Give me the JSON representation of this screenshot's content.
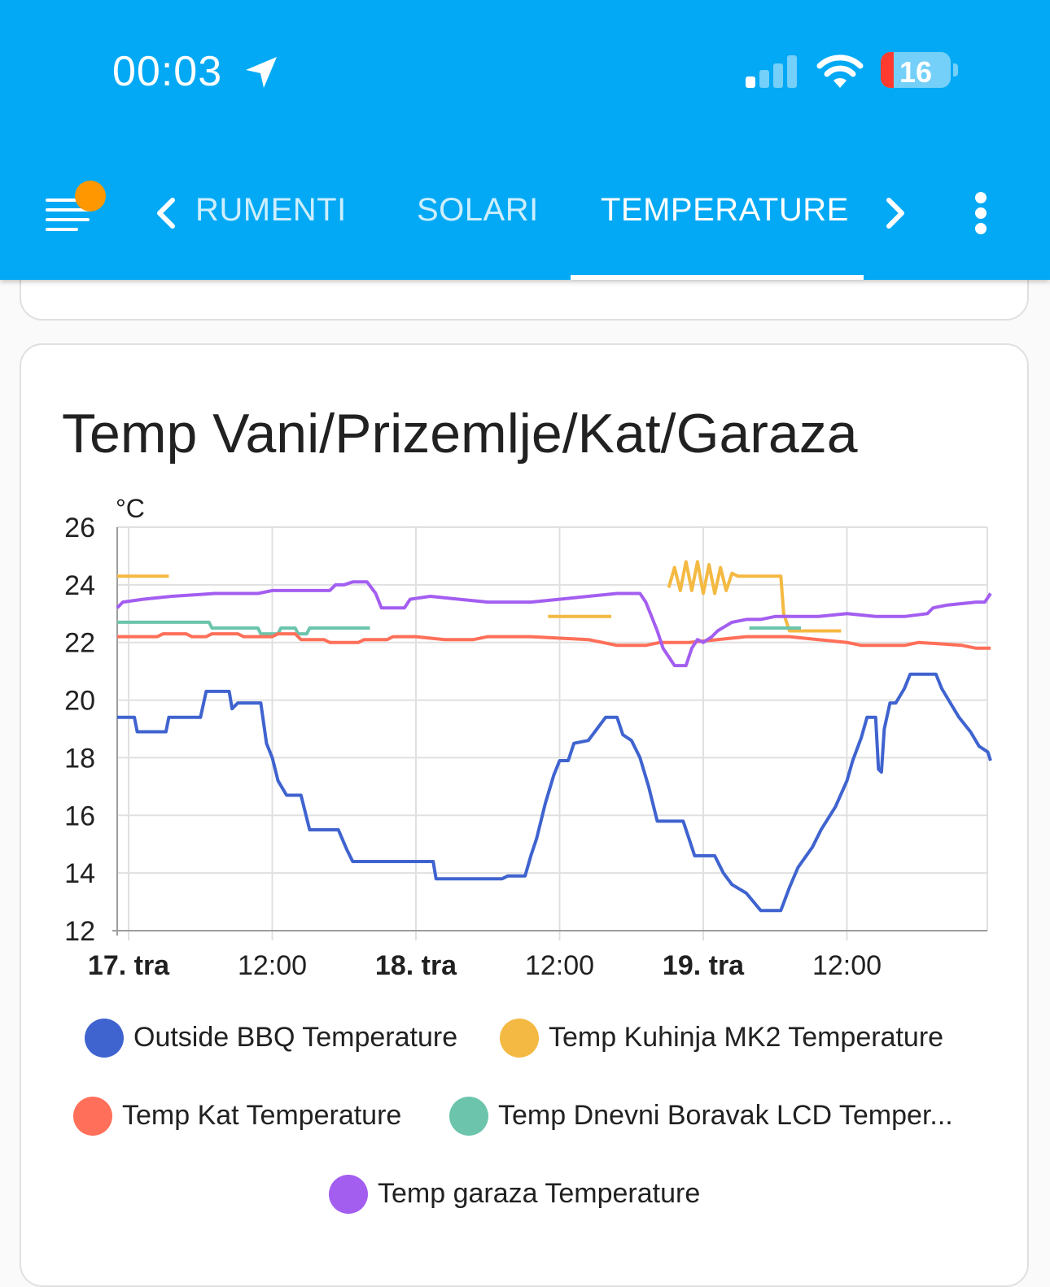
{
  "status_bar": {
    "time": "00:03",
    "battery": "16",
    "location_icon": "location-arrow-icon",
    "signal_icon": "cellular-signal-icon",
    "wifi_icon": "wifi-icon"
  },
  "app_bar": {
    "menu_icon": "menu-icon",
    "tabs": [
      {
        "label": "RUMENTI",
        "active": false
      },
      {
        "label": "SOLARI",
        "active": false
      },
      {
        "label": "TEMPERATURE",
        "active": true
      }
    ],
    "prev_icon": "chevron-left-icon",
    "next_icon": "chevron-right-icon",
    "overflow_icon": "more-vert-icon",
    "accent": "#03a9f4",
    "badge_color": "#ff9800"
  },
  "card": {
    "title": "Temp Vani/Prizemlje/Kat/Garaza"
  },
  "chart_data": {
    "type": "line",
    "title": "Temp Vani/Prizemlje/Kat/Garaza",
    "ylabel": "°C",
    "xlabel": "",
    "ylim": [
      12,
      26
    ],
    "yticks": [
      "26",
      "24",
      "22",
      "20",
      "18",
      "16",
      "14",
      "12"
    ],
    "xlim": [
      -0.08,
      3.0
    ],
    "xticks": [
      {
        "x": 0.0,
        "label": "17. tra",
        "bold": true
      },
      {
        "x": 0.5,
        "label": "12:00",
        "bold": false
      },
      {
        "x": 1.0,
        "label": "18. tra",
        "bold": true
      },
      {
        "x": 1.5,
        "label": "12:00",
        "bold": false
      },
      {
        "x": 2.0,
        "label": "19. tra",
        "bold": true
      },
      {
        "x": 2.5,
        "label": "12:00",
        "bold": false
      }
    ],
    "grid": true,
    "legend_position": "bottom",
    "series": [
      {
        "name": "Outside BBQ Temperature",
        "color": "#3f63cf",
        "points": [
          [
            -0.04,
            19.4
          ],
          [
            0.02,
            19.4
          ],
          [
            0.03,
            18.9
          ],
          [
            0.13,
            18.9
          ],
          [
            0.14,
            19.4
          ],
          [
            0.25,
            19.4
          ],
          [
            0.27,
            20.3
          ],
          [
            0.35,
            20.3
          ],
          [
            0.36,
            19.7
          ],
          [
            0.38,
            19.9
          ],
          [
            0.46,
            19.9
          ],
          [
            0.48,
            18.5
          ],
          [
            0.5,
            18.0
          ],
          [
            0.52,
            17.2
          ],
          [
            0.55,
            16.7
          ],
          [
            0.6,
            16.7
          ],
          [
            0.63,
            15.5
          ],
          [
            0.73,
            15.5
          ],
          [
            0.76,
            14.8
          ],
          [
            0.78,
            14.4
          ],
          [
            1.06,
            14.4
          ],
          [
            1.07,
            13.8
          ],
          [
            1.3,
            13.8
          ],
          [
            1.32,
            13.9
          ],
          [
            1.38,
            13.9
          ],
          [
            1.4,
            14.6
          ],
          [
            1.42,
            15.2
          ],
          [
            1.45,
            16.4
          ],
          [
            1.48,
            17.4
          ],
          [
            1.5,
            17.9
          ],
          [
            1.53,
            17.9
          ],
          [
            1.55,
            18.5
          ],
          [
            1.6,
            18.6
          ],
          [
            1.63,
            19.0
          ],
          [
            1.66,
            19.4
          ],
          [
            1.7,
            19.4
          ],
          [
            1.72,
            18.8
          ],
          [
            1.75,
            18.6
          ],
          [
            1.78,
            18.0
          ],
          [
            1.81,
            17.0
          ],
          [
            1.84,
            15.8
          ],
          [
            1.93,
            15.8
          ],
          [
            1.95,
            15.2
          ],
          [
            1.97,
            14.6
          ],
          [
            2.04,
            14.6
          ],
          [
            2.07,
            14.0
          ],
          [
            2.1,
            13.6
          ],
          [
            2.15,
            13.3
          ],
          [
            2.2,
            12.7
          ],
          [
            2.27,
            12.7
          ],
          [
            2.3,
            13.5
          ],
          [
            2.33,
            14.2
          ],
          [
            2.38,
            14.9
          ],
          [
            2.41,
            15.5
          ],
          [
            2.46,
            16.3
          ],
          [
            2.5,
            17.2
          ],
          [
            2.52,
            17.9
          ],
          [
            2.55,
            18.7
          ],
          [
            2.57,
            19.4
          ],
          [
            2.6,
            19.4
          ],
          [
            2.61,
            17.6
          ],
          [
            2.62,
            17.5
          ],
          [
            2.63,
            19.0
          ],
          [
            2.65,
            19.9
          ],
          [
            2.67,
            19.9
          ],
          [
            2.7,
            20.4
          ],
          [
            2.72,
            20.9
          ],
          [
            2.81,
            20.9
          ],
          [
            2.83,
            20.4
          ],
          [
            2.86,
            19.9
          ],
          [
            2.89,
            19.4
          ],
          [
            2.93,
            18.9
          ],
          [
            2.96,
            18.4
          ],
          [
            2.99,
            18.2
          ],
          [
            3.0,
            17.9
          ]
        ]
      },
      {
        "name": "Temp Kuhinja MK2 Temperature",
        "color": "#f4b942",
        "segments": [
          [
            [
              -0.04,
              24.3
            ],
            [
              0.14,
              24.3
            ]
          ],
          [
            [
              1.46,
              22.9
            ],
            [
              1.68,
              22.9
            ]
          ],
          [
            [
              1.88,
              23.9
            ],
            [
              1.9,
              24.6
            ],
            [
              1.92,
              23.8
            ],
            [
              1.94,
              24.8
            ],
            [
              1.96,
              23.8
            ],
            [
              1.98,
              24.8
            ],
            [
              2.0,
              23.7
            ],
            [
              2.02,
              24.7
            ],
            [
              2.04,
              23.7
            ],
            [
              2.06,
              24.6
            ],
            [
              2.08,
              23.8
            ],
            [
              2.1,
              24.4
            ],
            [
              2.12,
              24.3
            ],
            [
              2.27,
              24.3
            ],
            [
              2.28,
              23.0
            ],
            [
              2.3,
              22.4
            ],
            [
              2.48,
              22.4
            ]
          ]
        ]
      },
      {
        "name": "Temp Kat Temperature",
        "color": "#ff6f59",
        "points": [
          [
            -0.04,
            22.2
          ],
          [
            0.1,
            22.2
          ],
          [
            0.12,
            22.3
          ],
          [
            0.2,
            22.3
          ],
          [
            0.22,
            22.2
          ],
          [
            0.27,
            22.2
          ],
          [
            0.29,
            22.3
          ],
          [
            0.38,
            22.3
          ],
          [
            0.4,
            22.2
          ],
          [
            0.5,
            22.2
          ],
          [
            0.52,
            22.3
          ],
          [
            0.58,
            22.3
          ],
          [
            0.6,
            22.1
          ],
          [
            0.68,
            22.1
          ],
          [
            0.7,
            22.0
          ],
          [
            0.8,
            22.0
          ],
          [
            0.82,
            22.1
          ],
          [
            0.9,
            22.1
          ],
          [
            0.92,
            22.2
          ],
          [
            1.0,
            22.2
          ],
          [
            1.1,
            22.1
          ],
          [
            1.2,
            22.1
          ],
          [
            1.25,
            22.2
          ],
          [
            1.4,
            22.2
          ],
          [
            1.6,
            22.1
          ],
          [
            1.7,
            21.9
          ],
          [
            1.8,
            21.9
          ],
          [
            1.85,
            22.0
          ],
          [
            1.95,
            22.0
          ],
          [
            2.05,
            22.1
          ],
          [
            2.15,
            22.2
          ],
          [
            2.3,
            22.2
          ],
          [
            2.4,
            22.1
          ],
          [
            2.5,
            22.0
          ],
          [
            2.55,
            21.9
          ],
          [
            2.7,
            21.9
          ],
          [
            2.75,
            22.0
          ],
          [
            2.9,
            21.9
          ],
          [
            2.95,
            21.8
          ],
          [
            3.0,
            21.8
          ]
        ]
      },
      {
        "name": "Temp Dnevni Boravak LCD Temper...",
        "color": "#6cc4ac",
        "segments": [
          [
            [
              -0.04,
              22.7
            ],
            [
              0.28,
              22.7
            ],
            [
              0.29,
              22.5
            ],
            [
              0.45,
              22.5
            ],
            [
              0.46,
              22.3
            ],
            [
              0.52,
              22.3
            ],
            [
              0.53,
              22.5
            ],
            [
              0.58,
              22.5
            ],
            [
              0.59,
              22.3
            ],
            [
              0.62,
              22.3
            ],
            [
              0.63,
              22.5
            ],
            [
              0.84,
              22.5
            ]
          ],
          [
            [
              2.16,
              22.5
            ],
            [
              2.34,
              22.5
            ]
          ]
        ]
      },
      {
        "name": "Temp garaza Temperature",
        "color": "#a35ef0",
        "points": [
          [
            -0.04,
            23.2
          ],
          [
            -0.02,
            23.4
          ],
          [
            0.05,
            23.5
          ],
          [
            0.15,
            23.6
          ],
          [
            0.3,
            23.7
          ],
          [
            0.45,
            23.7
          ],
          [
            0.5,
            23.8
          ],
          [
            0.6,
            23.8
          ],
          [
            0.7,
            23.8
          ],
          [
            0.72,
            24.0
          ],
          [
            0.75,
            24.0
          ],
          [
            0.78,
            24.1
          ],
          [
            0.83,
            24.1
          ],
          [
            0.86,
            23.7
          ],
          [
            0.88,
            23.2
          ],
          [
            0.96,
            23.2
          ],
          [
            0.98,
            23.5
          ],
          [
            1.05,
            23.6
          ],
          [
            1.15,
            23.5
          ],
          [
            1.25,
            23.4
          ],
          [
            1.4,
            23.4
          ],
          [
            1.5,
            23.5
          ],
          [
            1.6,
            23.6
          ],
          [
            1.7,
            23.7
          ],
          [
            1.78,
            23.7
          ],
          [
            1.8,
            23.4
          ],
          [
            1.82,
            22.9
          ],
          [
            1.84,
            22.4
          ],
          [
            1.86,
            21.8
          ],
          [
            1.88,
            21.5
          ],
          [
            1.9,
            21.2
          ],
          [
            1.94,
            21.2
          ],
          [
            1.96,
            21.8
          ],
          [
            1.98,
            22.1
          ],
          [
            2.0,
            22.0
          ],
          [
            2.03,
            22.2
          ],
          [
            2.05,
            22.4
          ],
          [
            2.1,
            22.7
          ],
          [
            2.15,
            22.8
          ],
          [
            2.2,
            22.8
          ],
          [
            2.25,
            22.9
          ],
          [
            2.4,
            22.9
          ],
          [
            2.5,
            23.0
          ],
          [
            2.6,
            22.9
          ],
          [
            2.7,
            22.9
          ],
          [
            2.78,
            23.0
          ],
          [
            2.8,
            23.2
          ],
          [
            2.85,
            23.3
          ],
          [
            2.95,
            23.4
          ],
          [
            2.98,
            23.4
          ],
          [
            3.0,
            23.7
          ]
        ]
      }
    ]
  }
}
